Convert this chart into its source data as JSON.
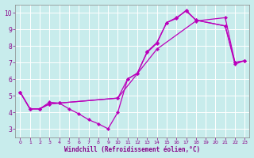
{
  "background_color": "#c8ecec",
  "grid_color": "#aadddd",
  "line_color": "#bb00bb",
  "xlabel": "Windchill (Refroidissement éolien,°C)",
  "xlim": [
    -0.5,
    23.5
  ],
  "ylim": [
    2.5,
    10.5
  ],
  "yticks": [
    3,
    4,
    5,
    6,
    7,
    8,
    9,
    10
  ],
  "xticks": [
    0,
    1,
    2,
    3,
    4,
    5,
    6,
    7,
    8,
    9,
    10,
    11,
    12,
    13,
    14,
    15,
    16,
    17,
    18,
    19,
    20,
    21,
    22,
    23
  ],
  "lines": [
    {
      "x": [
        0,
        1,
        2,
        3,
        4,
        5,
        6,
        7,
        8,
        9,
        10,
        11,
        12,
        13,
        14,
        15,
        16,
        17,
        18,
        21,
        22,
        23
      ],
      "y": [
        5.2,
        4.2,
        4.2,
        4.6,
        4.55,
        4.2,
        3.9,
        3.55,
        3.3,
        3.0,
        4.0,
        6.0,
        6.35,
        7.6,
        8.15,
        9.4,
        9.65,
        10.15,
        9.55,
        9.2,
        6.9,
        7.1
      ]
    },
    {
      "x": [
        0,
        1,
        2,
        3,
        4,
        10,
        11,
        12,
        13,
        14,
        15,
        16,
        17,
        18,
        21,
        22,
        23
      ],
      "y": [
        5.2,
        4.2,
        4.2,
        4.5,
        4.55,
        4.85,
        6.0,
        6.35,
        7.65,
        8.2,
        9.4,
        9.7,
        10.1,
        9.55,
        9.2,
        7.0,
        7.1
      ]
    },
    {
      "x": [
        0,
        1,
        2,
        3,
        4,
        10,
        14,
        18,
        21,
        22,
        23
      ],
      "y": [
        5.2,
        4.2,
        4.2,
        4.5,
        4.55,
        4.85,
        7.8,
        9.5,
        9.7,
        7.0,
        7.1
      ]
    }
  ]
}
